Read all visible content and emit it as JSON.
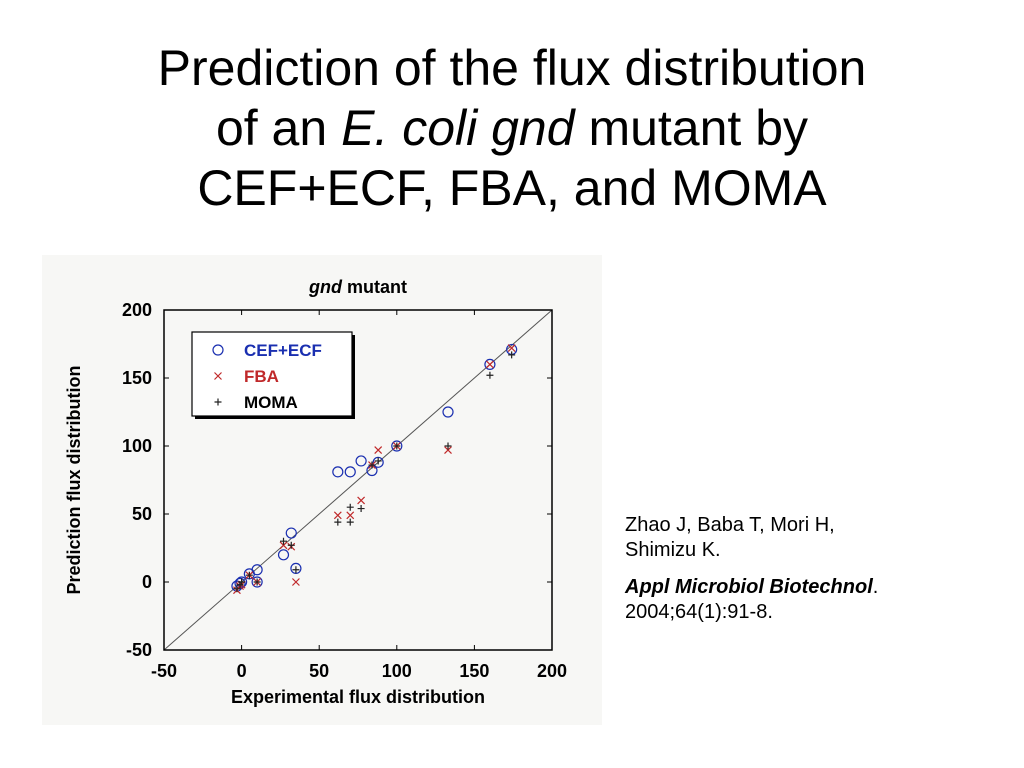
{
  "slide": {
    "title_line1": "Prediction of the flux distribution",
    "title_line2_pre": "of an ",
    "title_line2_italic": "E. coli gnd",
    "title_line2_post": " mutant by",
    "title_line3": "CEF+ECF, FBA, and MOMA"
  },
  "citation": {
    "authors_line1": "Zhao J, Baba T, Mori H,",
    "authors_line2": "Shimizu K.",
    "journal": "Appl Microbiol Biotechnol",
    "journal_dot": ".",
    "details": "2004;64(1):91-8."
  },
  "chart_data": {
    "type": "scatter",
    "title_italic": "gnd",
    "title_rest": " mutant",
    "xlabel": "Experimental flux distribution",
    "ylabel": "Prediction flux distribution",
    "xlim": [
      -50,
      200
    ],
    "ylim": [
      -50,
      200
    ],
    "xticks": [
      -50,
      0,
      50,
      100,
      150,
      200
    ],
    "yticks": [
      -50,
      0,
      50,
      100,
      150,
      200
    ],
    "xtick_labels": [
      "-50",
      "0",
      "50",
      "100",
      "150",
      "200"
    ],
    "ytick_labels": [
      "-50",
      "0",
      "50",
      "100",
      "150",
      "200"
    ],
    "grid": false,
    "diagonal": true,
    "legend_position": "top-left",
    "series": [
      {
        "name": "CEF+ECF",
        "marker": "circle",
        "color": "#1a2fb0",
        "points": [
          [
            -3,
            -3
          ],
          [
            -1,
            -1
          ],
          [
            0,
            0
          ],
          [
            5,
            6
          ],
          [
            10,
            0
          ],
          [
            10,
            9
          ],
          [
            27,
            20
          ],
          [
            32,
            36
          ],
          [
            35,
            10
          ],
          [
            62,
            81
          ],
          [
            70,
            81
          ],
          [
            77,
            89
          ],
          [
            84,
            82
          ],
          [
            88,
            88
          ],
          [
            100,
            100
          ],
          [
            133,
            125
          ],
          [
            160,
            160
          ],
          [
            174,
            171
          ]
        ]
      },
      {
        "name": "FBA",
        "marker": "x",
        "color": "#c0292a",
        "points": [
          [
            -3,
            -6
          ],
          [
            -1,
            -3
          ],
          [
            0,
            -2
          ],
          [
            5,
            5
          ],
          [
            10,
            0
          ],
          [
            27,
            27
          ],
          [
            32,
            26
          ],
          [
            35,
            0
          ],
          [
            62,
            49
          ],
          [
            70,
            49
          ],
          [
            77,
            60
          ],
          [
            84,
            86
          ],
          [
            88,
            97
          ],
          [
            100,
            100
          ],
          [
            133,
            97
          ],
          [
            160,
            160
          ],
          [
            174,
            172
          ]
        ]
      },
      {
        "name": "MOMA",
        "marker": "plus",
        "color": "#222222",
        "points": [
          [
            -3,
            -5
          ],
          [
            -1,
            -2
          ],
          [
            0,
            0
          ],
          [
            5,
            5
          ],
          [
            10,
            0
          ],
          [
            27,
            30
          ],
          [
            32,
            27
          ],
          [
            35,
            9
          ],
          [
            62,
            44
          ],
          [
            70,
            44
          ],
          [
            70,
            55
          ],
          [
            77,
            54
          ],
          [
            84,
            86
          ],
          [
            88,
            89
          ],
          [
            100,
            100
          ],
          [
            133,
            100
          ],
          [
            160,
            152
          ],
          [
            174,
            167
          ]
        ]
      }
    ]
  }
}
